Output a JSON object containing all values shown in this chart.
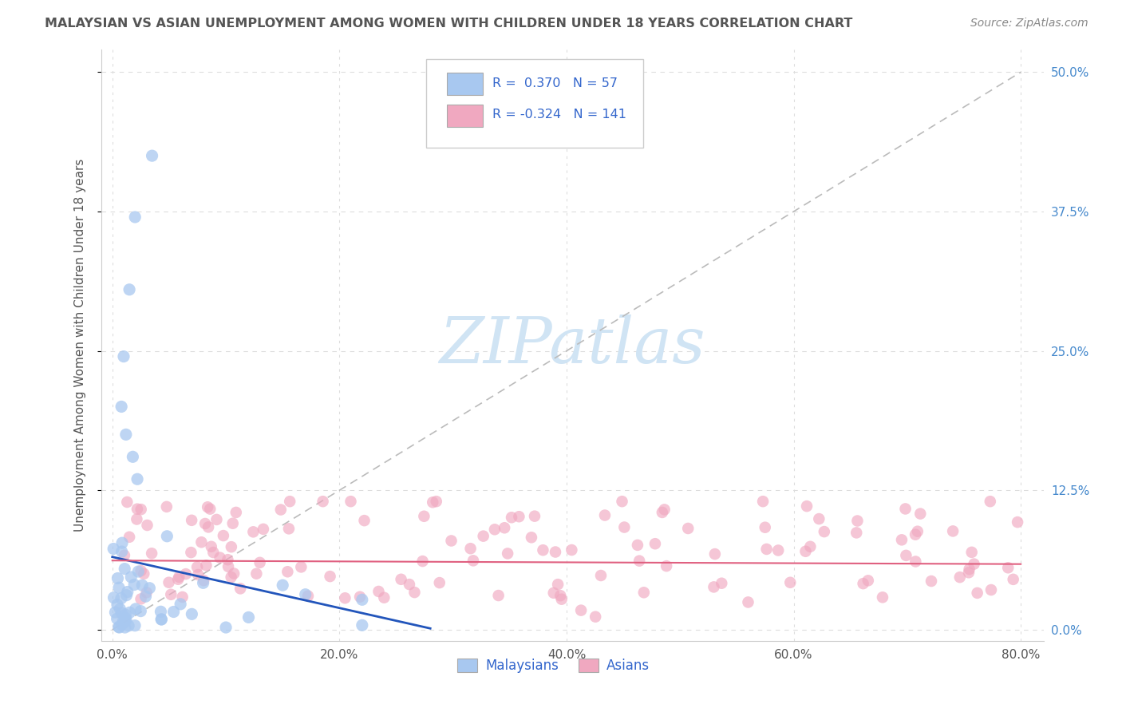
{
  "title": "MALAYSIAN VS ASIAN UNEMPLOYMENT AMONG WOMEN WITH CHILDREN UNDER 18 YEARS CORRELATION CHART",
  "source": "Source: ZipAtlas.com",
  "ylabel": "Unemployment Among Women with Children Under 18 years",
  "xlabel_ticks": [
    "0.0%",
    "20.0%",
    "40.0%",
    "60.0%",
    "80.0%"
  ],
  "xlabel_vals": [
    0.0,
    0.2,
    0.4,
    0.6,
    0.8
  ],
  "ylabel_ticks": [
    "0.0%",
    "12.5%",
    "25.0%",
    "37.5%",
    "50.0%"
  ],
  "ylabel_vals": [
    0.0,
    0.125,
    0.25,
    0.375,
    0.5
  ],
  "xlim": [
    -0.01,
    0.82
  ],
  "ylim": [
    -0.01,
    0.52
  ],
  "malaysian_color": "#a8c8f0",
  "asian_color": "#f0a8c0",
  "malaysian_line_color": "#2255bb",
  "asian_line_color": "#e06080",
  "malaysian_R": 0.37,
  "malaysian_N": 57,
  "asian_R": -0.324,
  "asian_N": 141,
  "diagonal_color": "#bbbbbb",
  "background_color": "#ffffff",
  "grid_color": "#dddddd",
  "title_color": "#555555",
  "source_color": "#888888",
  "legend_label1": "Malaysians",
  "legend_label2": "Asians",
  "watermark_color": "#d0e4f4"
}
